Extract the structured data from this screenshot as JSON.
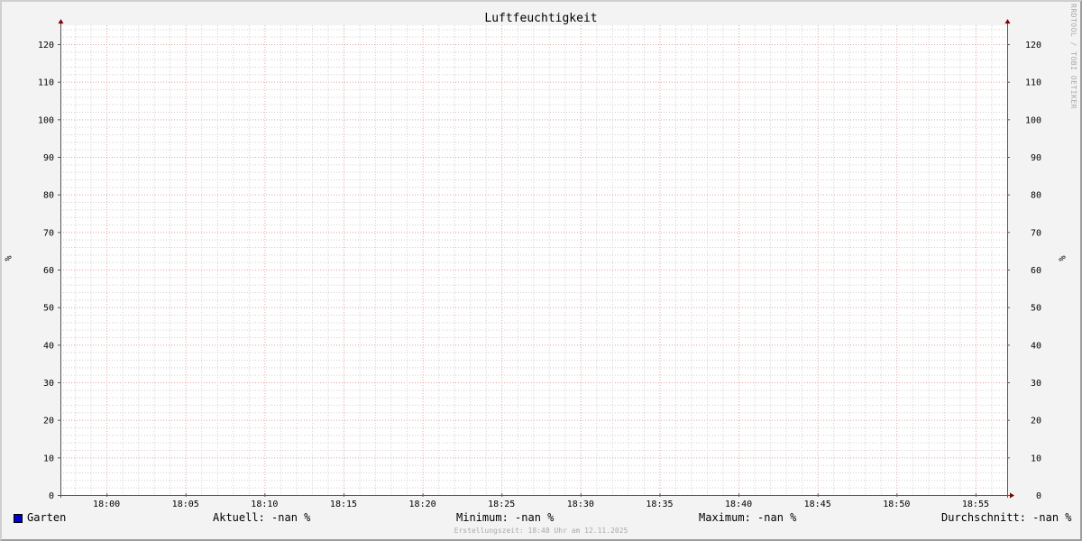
{
  "chart_data": {
    "type": "line",
    "title": "Luftfeuchtigkeit",
    "ylabel": "%",
    "ylabel_right": "%",
    "ylim": [
      0,
      125
    ],
    "y_ticks": [
      "0",
      "10",
      "20",
      "30",
      "40",
      "50",
      "60",
      "70",
      "80",
      "90",
      "100",
      "110",
      "120"
    ],
    "x_ticks": [
      "18:00",
      "18:05",
      "18:10",
      "18:15",
      "18:20",
      "18:25",
      "18:30",
      "18:35",
      "18:40",
      "18:45",
      "18:50",
      "18:55"
    ],
    "x_range": [
      "17:57",
      "18:57"
    ],
    "grid": true,
    "series": [
      {
        "name": "Garten",
        "color": "#0000cc",
        "values": []
      }
    ],
    "legend": {
      "series_label": "Garten",
      "current": "Aktuell: -nan %",
      "minimum": "Minimum: -nan %",
      "maximum": "Maximum: -nan %",
      "average": "Durchschnitt: -nan %"
    },
    "footer": "Erstellungszeit: 18:48 Uhr am 12.11.2025",
    "watermark": "RRDTOOL / TOBI OETIKER",
    "colors": {
      "major_grid": "#e0a0a0",
      "minor_grid": "#d0d0d0",
      "axis": "#555555",
      "arrow": "#800000"
    }
  }
}
